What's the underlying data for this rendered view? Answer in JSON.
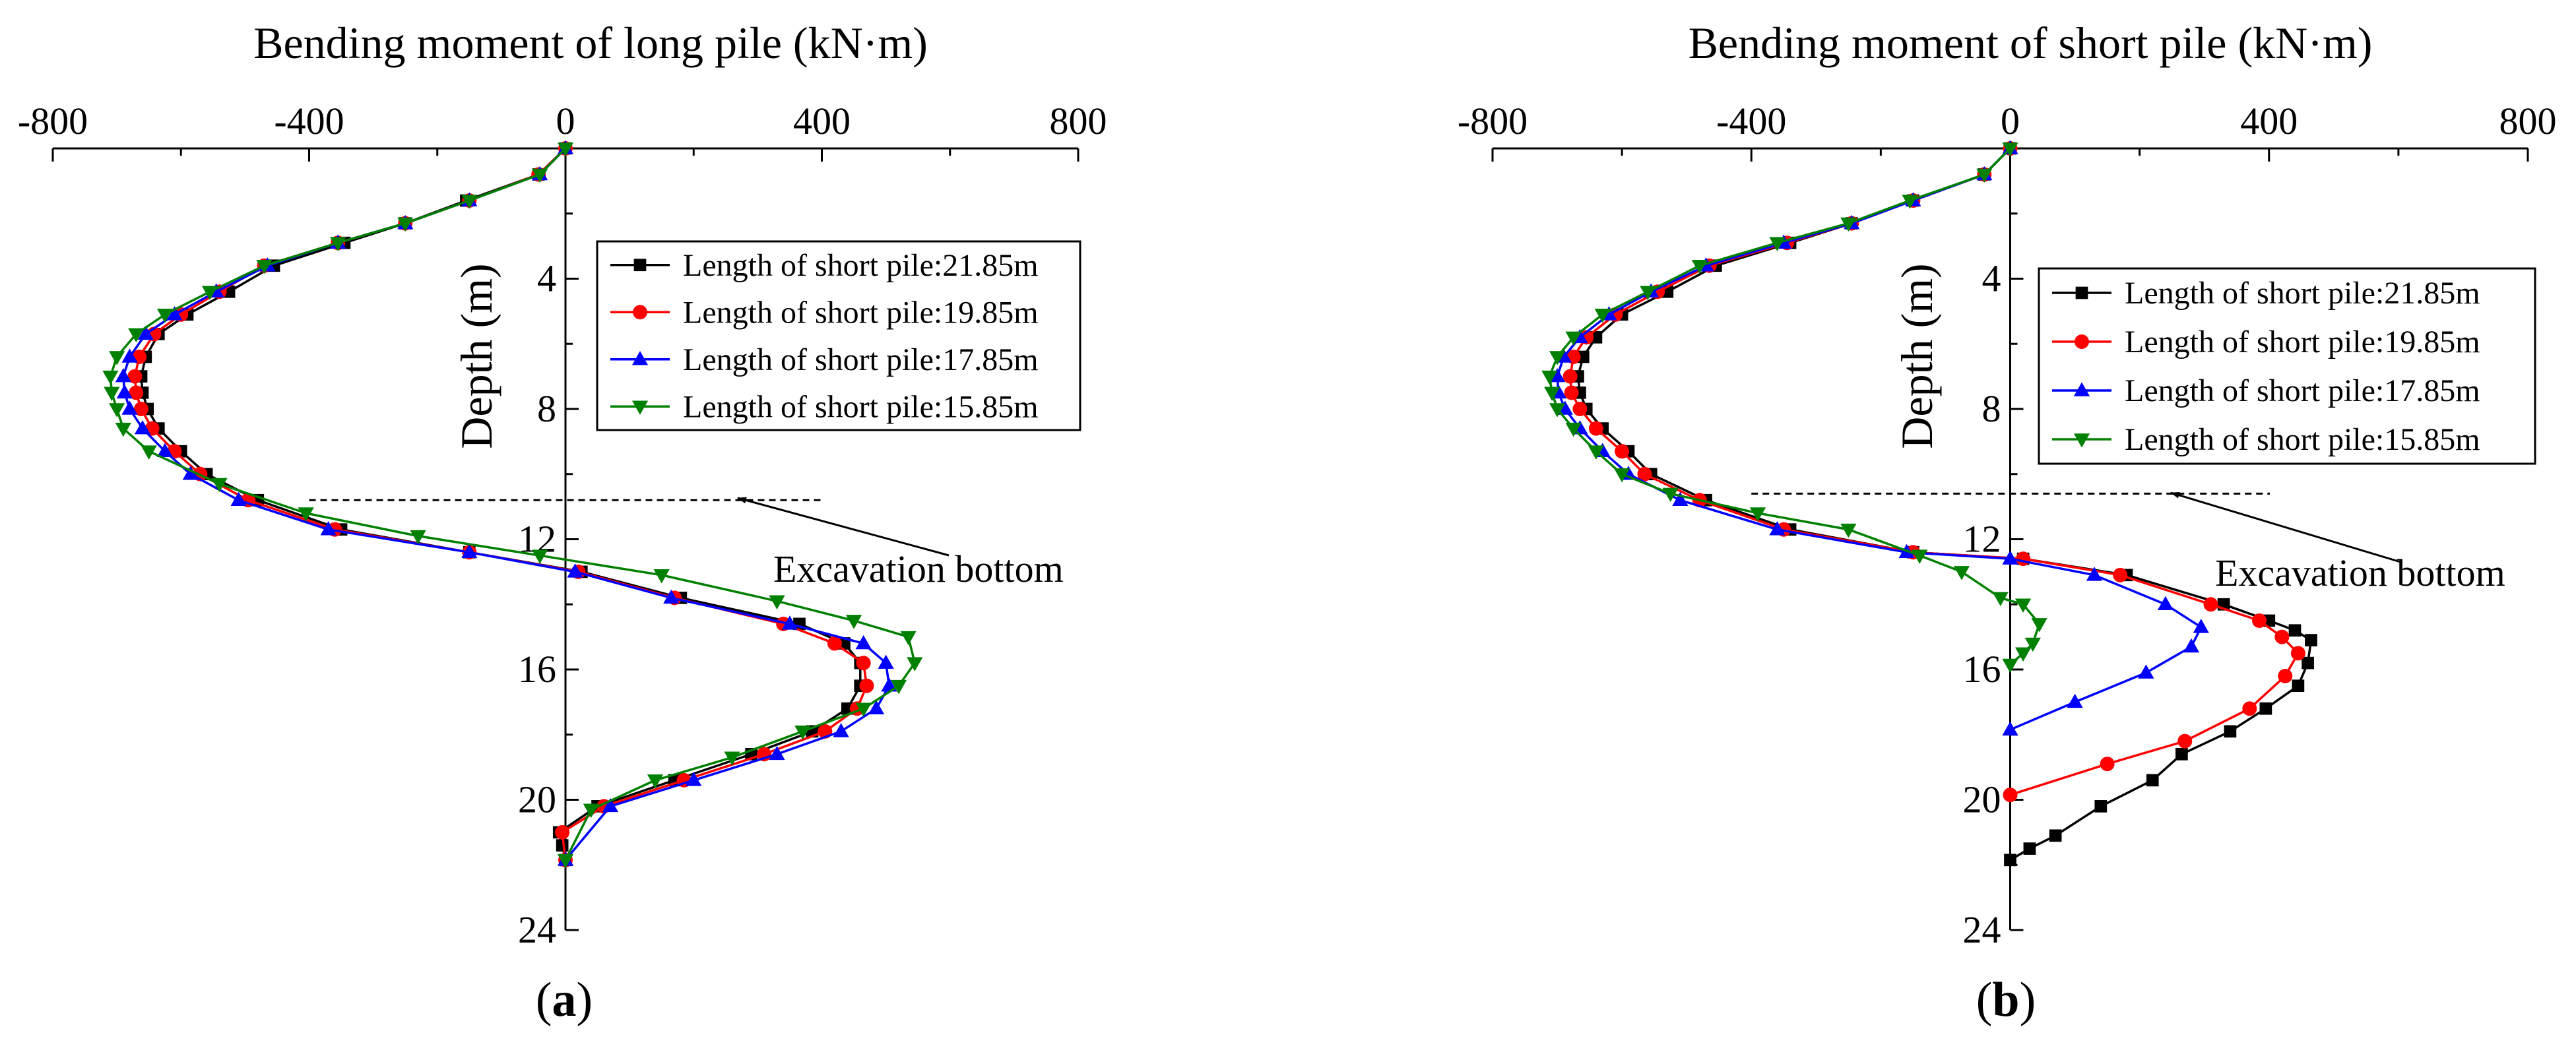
{
  "chart_data": [
    {
      "type": "line",
      "panel_label": "(a)",
      "panel_letter": "a",
      "title": "Bending moment of long pile (kN·m)",
      "xlabel": "Bending moment of long pile (kN·m)",
      "ylabel": "Depth (m)",
      "xlim": [
        -800,
        800
      ],
      "ylim": [
        24,
        0
      ],
      "x_ticks": [
        -800,
        -400,
        0,
        400,
        800
      ],
      "y_ticks": [
        4,
        8,
        12,
        16,
        20,
        24
      ],
      "x_axis_position": "top",
      "y_axis_position": "x=0",
      "legend_position": "right",
      "annotation": {
        "text": "Excavation bottom",
        "depth": 10.8
      },
      "series": [
        {
          "name": "Length of short pile:21.85m",
          "color": "#000000",
          "marker": "square",
          "x": [
            0,
            -42,
            -155,
            -250,
            -345,
            -455,
            -525,
            -590,
            -635,
            -655,
            -662,
            -660,
            -652,
            -635,
            -600,
            -560,
            -480,
            -350,
            -150,
            25,
            180,
            365,
            435,
            460,
            460,
            440,
            385,
            290,
            170,
            50,
            -10,
            -5,
            0
          ],
          "y": [
            0,
            0.8,
            1.6,
            2.3,
            2.9,
            3.6,
            4.4,
            5.1,
            5.7,
            6.4,
            7.0,
            7.5,
            8.0,
            8.6,
            9.3,
            10.0,
            10.8,
            11.7,
            12.4,
            13.0,
            13.8,
            14.6,
            15.2,
            15.8,
            16.5,
            17.2,
            17.9,
            18.6,
            19.4,
            20.2,
            21.0,
            21.4,
            21.85
          ]
        },
        {
          "name": "Length of short pile:19.85m",
          "color": "#ff0000",
          "marker": "circle",
          "x": [
            0,
            -42,
            -150,
            -250,
            -355,
            -470,
            -540,
            -600,
            -642,
            -665,
            -672,
            -670,
            -662,
            -645,
            -610,
            -570,
            -495,
            -360,
            -150,
            20,
            170,
            340,
            420,
            465,
            470,
            455,
            405,
            310,
            185,
            60,
            -5,
            0
          ],
          "y": [
            0,
            0.8,
            1.6,
            2.3,
            2.9,
            3.6,
            4.4,
            5.1,
            5.7,
            6.4,
            7.0,
            7.5,
            8.0,
            8.6,
            9.3,
            10.0,
            10.8,
            11.7,
            12.4,
            13.0,
            13.8,
            14.6,
            15.2,
            15.8,
            16.5,
            17.2,
            17.9,
            18.6,
            19.4,
            20.2,
            21.0,
            21.85
          ]
        },
        {
          "name": "Length of short pile:17.85m",
          "color": "#0000ff",
          "marker": "triangle-up",
          "x": [
            0,
            -40,
            -150,
            -250,
            -355,
            -465,
            -545,
            -610,
            -655,
            -680,
            -690,
            -688,
            -680,
            -660,
            -625,
            -585,
            -510,
            -370,
            -150,
            15,
            165,
            350,
            465,
            500,
            505,
            485,
            430,
            330,
            200,
            70,
            0
          ],
          "y": [
            0,
            0.8,
            1.6,
            2.3,
            2.9,
            3.6,
            4.4,
            5.1,
            5.7,
            6.4,
            7.0,
            7.5,
            8.0,
            8.6,
            9.3,
            10.0,
            10.8,
            11.7,
            12.4,
            13.0,
            13.8,
            14.6,
            15.2,
            15.8,
            16.5,
            17.2,
            17.9,
            18.6,
            19.4,
            20.2,
            21.85
          ]
        },
        {
          "name": "Length of short pile:15.85m",
          "color": "#008000",
          "marker": "triangle-down",
          "x": [
            0,
            -40,
            -150,
            -250,
            -355,
            -470,
            -555,
            -625,
            -670,
            -700,
            -710,
            -708,
            -700,
            -690,
            -650,
            -540,
            -405,
            -230,
            -40,
            150,
            330,
            450,
            535,
            545,
            520,
            465,
            370,
            260,
            140,
            40,
            0
          ],
          "y": [
            0,
            0.8,
            1.6,
            2.3,
            2.9,
            3.6,
            4.4,
            5.1,
            5.7,
            6.4,
            7.0,
            7.5,
            8.0,
            8.6,
            9.3,
            10.3,
            11.2,
            11.9,
            12.5,
            13.1,
            13.9,
            14.5,
            15.0,
            15.8,
            16.5,
            17.2,
            17.9,
            18.7,
            19.4,
            20.3,
            21.85
          ]
        }
      ]
    },
    {
      "type": "line",
      "panel_label": "(b)",
      "panel_letter": "b",
      "title": "Bending moment of short pile (kN·m)",
      "xlabel": "Bending moment of short pile (kN·m)",
      "ylabel": "Depth (m)",
      "xlim": [
        -800,
        800
      ],
      "ylim": [
        24,
        0
      ],
      "x_ticks": [
        -800,
        -400,
        0,
        400,
        800
      ],
      "y_ticks": [
        4,
        8,
        12,
        16,
        20,
        24
      ],
      "x_axis_position": "top",
      "y_axis_position": "x=0",
      "legend_position": "right",
      "annotation": {
        "text": "Excavation bottom",
        "depth": 10.6
      },
      "series": [
        {
          "name": "Length of short pile:21.85m",
          "color": "#000000",
          "marker": "square",
          "x": [
            0,
            -40,
            -150,
            -245,
            -340,
            -455,
            -530,
            -600,
            -640,
            -660,
            -668,
            -665,
            -655,
            -630,
            -590,
            -555,
            -470,
            -340,
            -150,
            20,
            180,
            330,
            400,
            440,
            465,
            460,
            445,
            395,
            340,
            265,
            220,
            140,
            70,
            30,
            0
          ],
          "y": [
            0,
            0.8,
            1.6,
            2.3,
            2.9,
            3.6,
            4.4,
            5.1,
            5.8,
            6.4,
            7.0,
            7.5,
            8.0,
            8.6,
            9.3,
            10.0,
            10.8,
            11.7,
            12.4,
            12.6,
            13.1,
            14.0,
            14.5,
            14.8,
            15.1,
            15.8,
            16.5,
            17.2,
            17.9,
            18.6,
            19.4,
            20.2,
            21.1,
            21.5,
            21.85
          ]
        },
        {
          "name": "Length of short pile:19.85m",
          "color": "#ff0000",
          "marker": "circle",
          "x": [
            0,
            -40,
            -150,
            -245,
            -345,
            -465,
            -545,
            -610,
            -655,
            -675,
            -680,
            -678,
            -665,
            -640,
            -600,
            -565,
            -480,
            -350,
            -150,
            20,
            170,
            310,
            385,
            420,
            445,
            425,
            370,
            270,
            150,
            0
          ],
          "y": [
            0,
            0.8,
            1.6,
            2.3,
            2.9,
            3.6,
            4.4,
            5.1,
            5.8,
            6.4,
            7.0,
            7.5,
            8.0,
            8.6,
            9.3,
            10.0,
            10.8,
            11.7,
            12.4,
            12.6,
            13.1,
            14.0,
            14.5,
            15.0,
            15.5,
            16.2,
            17.2,
            18.2,
            18.9,
            19.85
          ]
        },
        {
          "name": "Length of short pile:17.85m",
          "color": "#0000ff",
          "marker": "triangle-up",
          "x": [
            0,
            -40,
            -150,
            -245,
            -350,
            -470,
            -555,
            -620,
            -665,
            -690,
            -700,
            -698,
            -688,
            -665,
            -630,
            -590,
            -510,
            -360,
            -160,
            0,
            130,
            240,
            295,
            280,
            210,
            100,
            0
          ],
          "y": [
            0,
            0.8,
            1.6,
            2.3,
            2.9,
            3.6,
            4.4,
            5.1,
            5.8,
            6.4,
            7.0,
            7.5,
            8.0,
            8.6,
            9.3,
            10.0,
            10.8,
            11.7,
            12.4,
            12.6,
            13.1,
            14.0,
            14.7,
            15.3,
            16.1,
            17.0,
            17.85
          ]
        },
        {
          "name": "Length of short pile:15.85m",
          "color": "#008000",
          "marker": "triangle-down",
          "x": [
            0,
            -40,
            -155,
            -250,
            -360,
            -480,
            -560,
            -630,
            -675,
            -700,
            -712,
            -708,
            -700,
            -675,
            -640,
            -600,
            -525,
            -390,
            -250,
            -140,
            -75,
            -15,
            20,
            45,
            35,
            20,
            0
          ],
          "y": [
            0,
            0.8,
            1.6,
            2.3,
            2.9,
            3.6,
            4.4,
            5.1,
            5.8,
            6.4,
            7.0,
            7.5,
            8.0,
            8.6,
            9.3,
            10.0,
            10.6,
            11.2,
            11.7,
            12.5,
            13.0,
            13.8,
            14.0,
            14.6,
            15.2,
            15.5,
            15.85
          ]
        }
      ]
    }
  ]
}
